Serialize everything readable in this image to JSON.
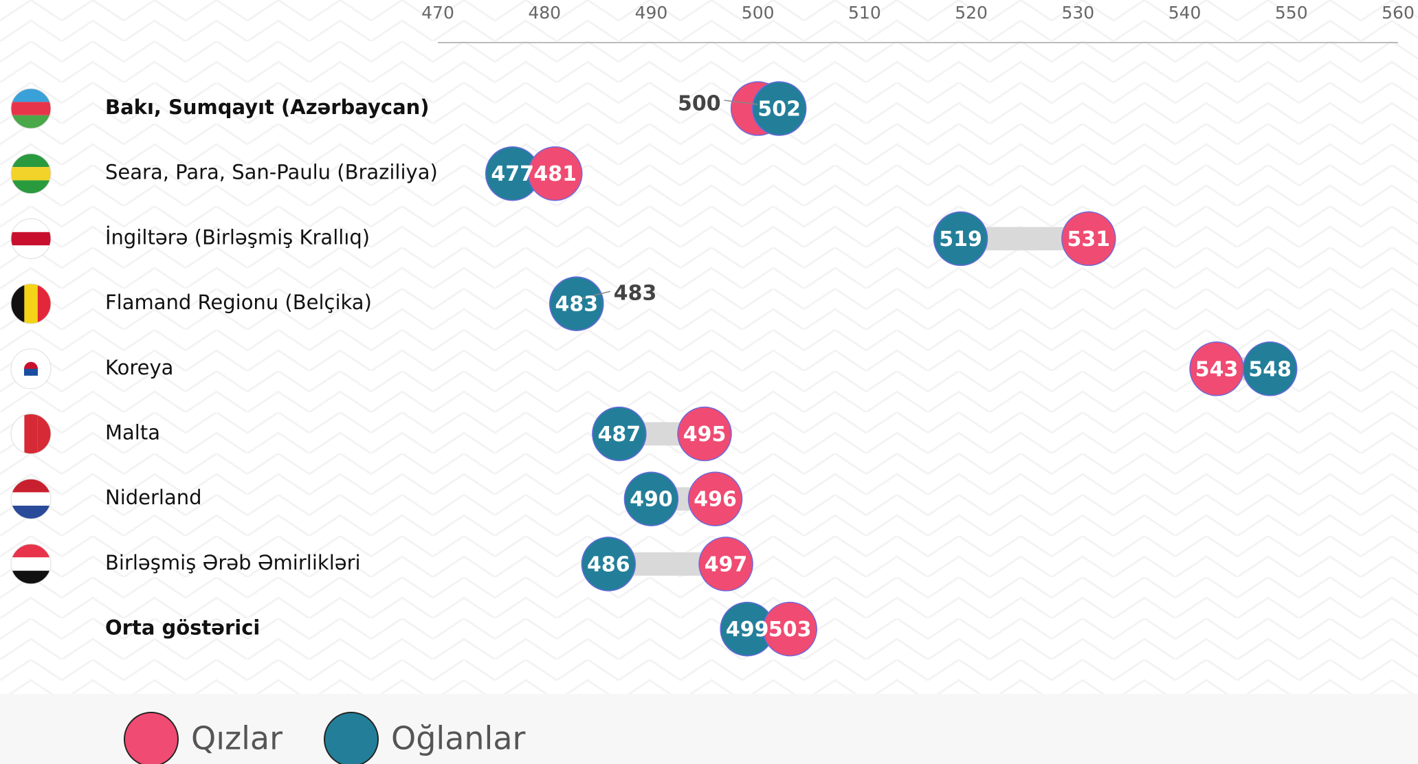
{
  "chart_data": {
    "type": "dumbbell",
    "categories": [
      "Bakı, Sumqayıt (Azərbaycan)",
      "Seara, Para, San-Paulu (Braziliya)",
      "İngiltərə (Birləşmiş Krallıq)",
      "Flamand Regionu (Belçika)",
      "Koreya",
      "Malta",
      "Niderland",
      "Birləşmiş Ərəb Əmirlikləri",
      "Orta göstərici"
    ],
    "series": [
      {
        "name": "Qızlar",
        "color": "#f04b72",
        "values": [
          500,
          481,
          531,
          483,
          543,
          495,
          496,
          497,
          503
        ]
      },
      {
        "name": "Oğlanlar",
        "color": "#237f99",
        "values": [
          502,
          477,
          519,
          483,
          548,
          487,
          490,
          486,
          499
        ]
      }
    ],
    "xlim": [
      470,
      560
    ],
    "xticks": [
      470,
      480,
      490,
      500,
      510,
      520,
      530,
      540,
      550,
      560
    ],
    "connector_color": "#d9d9d9",
    "legend": "bottom-left"
  }
}
